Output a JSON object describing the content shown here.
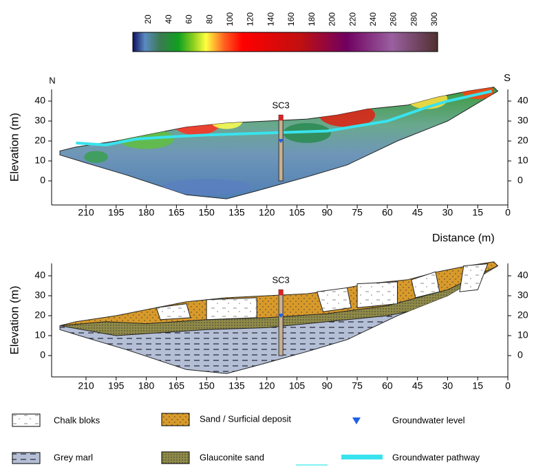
{
  "colorbar": {
    "ticks": [
      20,
      40,
      60,
      80,
      100,
      120,
      140,
      160,
      180,
      200,
      220,
      240,
      260,
      280,
      300
    ]
  },
  "panels": [
    {
      "north": "N",
      "south": "S",
      "borehole": "SC3",
      "y_label": "Elevation (m)",
      "x_label": "Distance (m)",
      "yticks": [
        40,
        30,
        20,
        10,
        0
      ],
      "xticks": [
        210,
        195,
        180,
        165,
        150,
        135,
        120,
        105,
        90,
        75,
        60,
        45,
        30,
        15,
        0
      ]
    },
    {
      "borehole": "SC3",
      "y_label": "Elevation (m)",
      "yticks": [
        40,
        30,
        20,
        10,
        0
      ],
      "xticks": [
        210,
        195,
        180,
        165,
        150,
        135,
        120,
        105,
        90,
        75,
        60,
        45,
        30,
        15,
        0
      ]
    }
  ],
  "legend": [
    {
      "label": "Chalk bloks"
    },
    {
      "label": "Sand / Surficial deposit"
    },
    {
      "label": "Groundwater level"
    },
    {
      "label": "Grey marl"
    },
    {
      "label": "Glauconite sand"
    },
    {
      "label": "Groundwater pathway"
    }
  ]
}
